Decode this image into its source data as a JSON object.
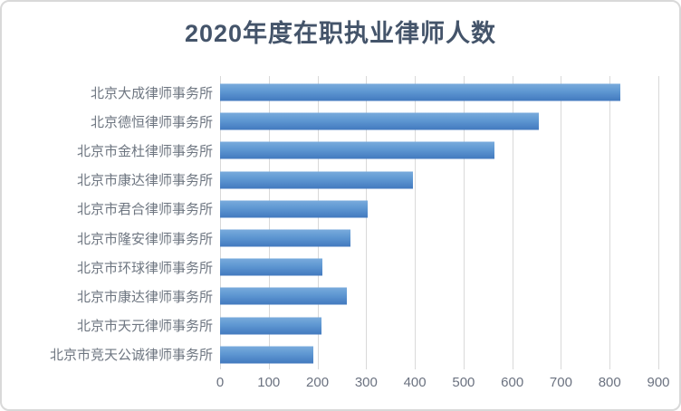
{
  "chart_data": {
    "type": "bar",
    "orientation": "horizontal",
    "title": "2020年度在职执业律师人数",
    "categories": [
      "北京大成律师事务所",
      "北京德恒律师事务所",
      "北京市金杜律师事务所",
      "北京市康达律师事务所",
      "北京市君合律师事务所",
      "北京市隆安律师事务所",
      "北京市环球律师事务所",
      "北京市康达律师事务所",
      "北京市天元律师事务所",
      "北京市竞天公诚律师事务所"
    ],
    "values": [
      822,
      655,
      563,
      396,
      303,
      267,
      211,
      260,
      208,
      192
    ],
    "xlabel": "",
    "ylabel": "",
    "xlim": [
      0,
      900
    ],
    "x_ticks": [
      0,
      100,
      200,
      300,
      400,
      500,
      600,
      700,
      800,
      900
    ],
    "grid": "vertical-gridlines-on",
    "legend_position": "none",
    "colors": {
      "bar_gradient_top": "#79abdc",
      "bar_gradient_bottom": "#4279be",
      "title_text": "#44546A",
      "axis_text": "#6b7280",
      "gridline": "#d9d9d9",
      "chart_border": "#d9d9d9",
      "background": "#ffffff"
    }
  }
}
